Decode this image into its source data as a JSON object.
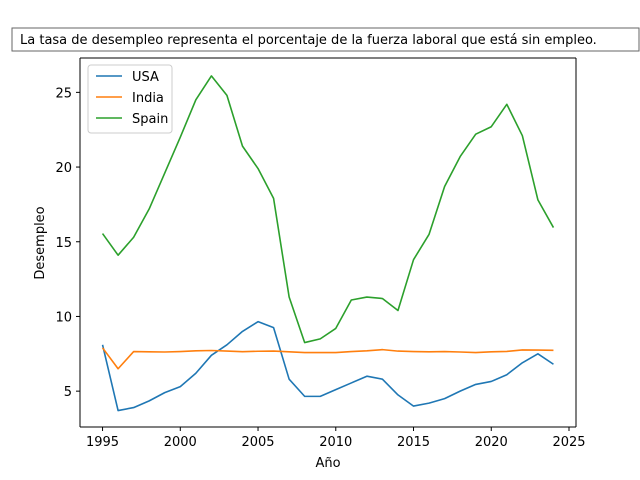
{
  "chart_data": {
    "type": "line",
    "title": "La tasa de desempleo representa el porcentaje de la fuerza laboral que está sin empleo.",
    "xlabel": "Año",
    "ylabel": "Desempleo",
    "xlim": [
      1993.55,
      2025.45
    ],
    "ylim": [
      2.6,
      27.3
    ],
    "xticks": [
      1995,
      2000,
      2005,
      2010,
      2015,
      2020,
      2025
    ],
    "yticks": [
      5,
      10,
      15,
      20,
      25
    ],
    "grid": false,
    "legend_position": "top-left",
    "x": [
      1995,
      1996,
      1997,
      1998,
      1999,
      2000,
      2001,
      2002,
      2003,
      2004,
      2005,
      2006,
      2007,
      2008,
      2009,
      2010,
      2011,
      2012,
      2013,
      2014,
      2015,
      2016,
      2017,
      2018,
      2019,
      2020,
      2021,
      2022,
      2023,
      2024
    ],
    "series": [
      {
        "name": "USA",
        "color": "#1f77b4",
        "values": [
          8.1,
          3.7,
          3.9,
          4.35,
          4.9,
          5.3,
          6.2,
          7.4,
          8.1,
          9.0,
          9.65,
          9.25,
          5.8,
          4.65,
          4.65,
          5.1,
          5.55,
          6.0,
          5.8,
          4.75,
          4.0,
          4.2,
          4.5,
          5.0,
          5.45,
          5.65,
          6.1,
          6.9,
          7.5,
          6.8
        ]
      },
      {
        "name": "India",
        "color": "#ff7f0e",
        "values": [
          7.9,
          6.5,
          7.65,
          7.63,
          7.62,
          7.65,
          7.7,
          7.72,
          7.68,
          7.64,
          7.67,
          7.68,
          7.63,
          7.58,
          7.58,
          7.58,
          7.65,
          7.7,
          7.78,
          7.68,
          7.65,
          7.63,
          7.65,
          7.62,
          7.58,
          7.63,
          7.66,
          7.76,
          7.75,
          7.73
        ]
      },
      {
        "name": "Spain",
        "color": "#2ca02c",
        "values": [
          15.55,
          14.1,
          15.3,
          17.2,
          19.6,
          22.0,
          24.5,
          26.1,
          24.8,
          21.4,
          19.9,
          17.9,
          11.3,
          8.25,
          8.5,
          9.2,
          11.1,
          11.3,
          11.2,
          10.4,
          13.8,
          15.5,
          18.7,
          20.7,
          22.2,
          22.7,
          24.2,
          22.1,
          17.8,
          15.95
        ]
      }
    ]
  }
}
